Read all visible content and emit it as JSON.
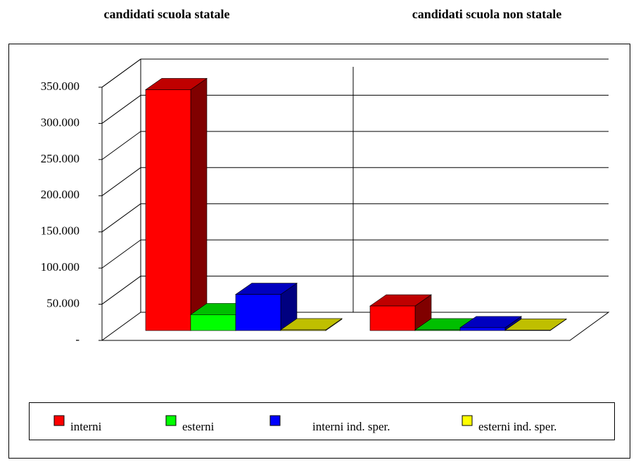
{
  "chart_data": {
    "type": "bar3d",
    "categories": [
      "candidati scuola statale",
      "candidati scuola non statale"
    ],
    "series": [
      {
        "name": "interni",
        "color": "#ff0000",
        "values": [
          333000,
          34000
        ]
      },
      {
        "name": "esterni",
        "color": "#00ff00",
        "values": [
          22000,
          1000
        ]
      },
      {
        "name": "interni ind. sper.",
        "color": "#0000ff",
        "values": [
          50000,
          4000
        ]
      },
      {
        "name": "esterni ind. sper.",
        "color": "#ffff00",
        "values": [
          1000,
          500
        ]
      }
    ],
    "ylim": [
      0,
      350000
    ],
    "yticks": [
      {
        "value": 0,
        "label": "-"
      },
      {
        "value": 50000,
        "label": "50.000"
      },
      {
        "value": 100000,
        "label": "100.000"
      },
      {
        "value": 150000,
        "label": "150.000"
      },
      {
        "value": 200000,
        "label": "200.000"
      },
      {
        "value": 250000,
        "label": "250.000"
      },
      {
        "value": 300000,
        "label": "300.000"
      },
      {
        "value": 350000,
        "label": "350.000"
      }
    ],
    "grid": true,
    "legend": "bottom"
  }
}
